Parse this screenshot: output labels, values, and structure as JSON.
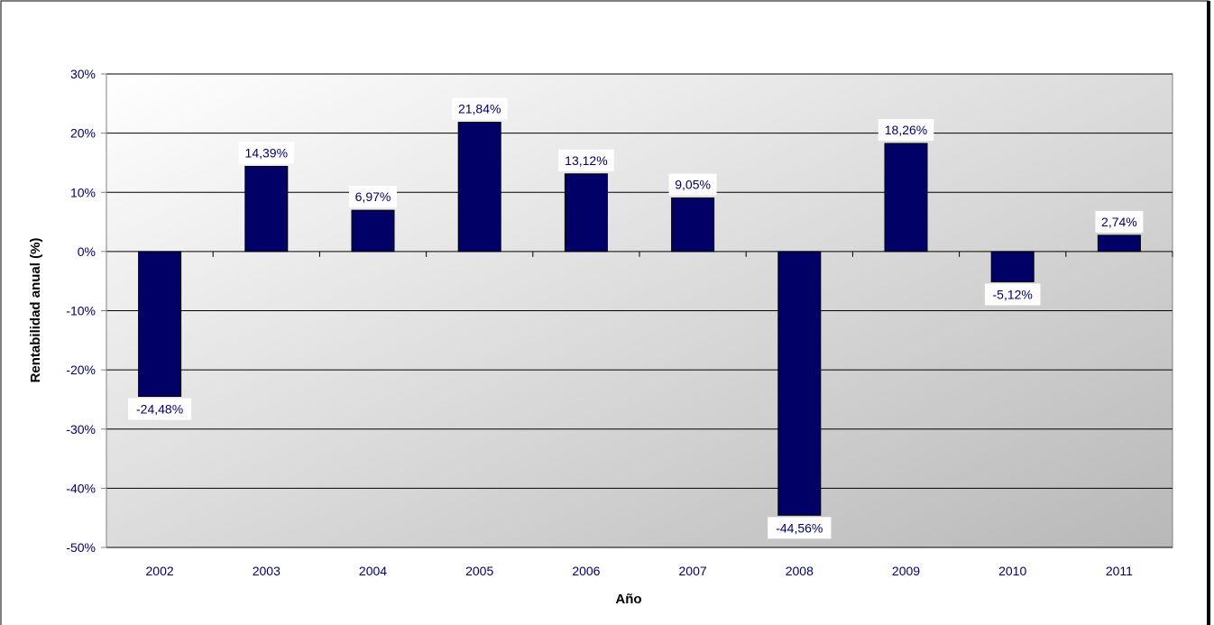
{
  "chart_data": {
    "type": "bar",
    "categories": [
      "2002",
      "2003",
      "2004",
      "2005",
      "2006",
      "2007",
      "2008",
      "2009",
      "2010",
      "2011"
    ],
    "values": [
      -24.48,
      14.39,
      6.97,
      21.84,
      13.12,
      9.05,
      -44.56,
      18.26,
      -5.12,
      2.74
    ],
    "data_labels": [
      "-24,48%",
      "14,39%",
      "6,97%",
      "21,84%",
      "13,12%",
      "9,05%",
      "-44,56%",
      "18,26%",
      "-5,12%",
      "2,74%"
    ],
    "y_ticks": [
      30,
      20,
      10,
      0,
      -10,
      -20,
      -30,
      -40,
      -50
    ],
    "y_tick_labels": [
      "30%",
      "20%",
      "10%",
      "0%",
      "-10%",
      "-20%",
      "-30%",
      "-40%",
      "-50%"
    ],
    "ylim": [
      -50,
      30
    ],
    "xlabel": "Año",
    "ylabel": "Rentabilidad anual (%)",
    "title": "",
    "grid": true,
    "legend": "none",
    "colors": {
      "bar": "#000066",
      "text": "#000066",
      "axis_title": "#000000",
      "grid": "#000000",
      "plot_bg_light": "#ffffff",
      "plot_bg_dark": "#b8b8b8"
    }
  }
}
